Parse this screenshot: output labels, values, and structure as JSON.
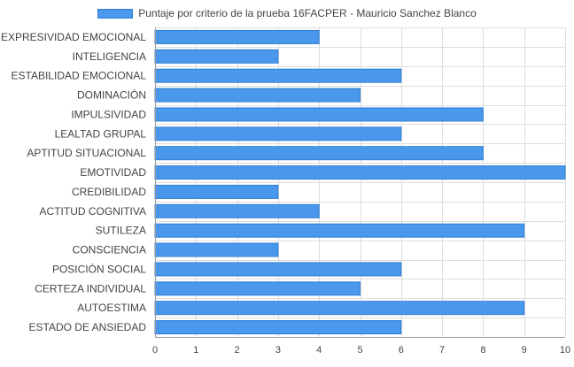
{
  "chart_data": {
    "type": "bar",
    "orientation": "horizontal",
    "categories": [
      "EXPRESIVIDAD EMOCIONAL",
      "INTELIGENCIA",
      "ESTABILIDAD EMOCIONAL",
      "DOMINACIÓN",
      "IMPULSIVIDAD",
      "LEALTAD GRUPAL",
      "APTITUD SITUACIONAL",
      "EMOTIVIDAD",
      "CREDIBILIDAD",
      "ACTITUD COGNITIVA",
      "SUTILEZA",
      "CONSCIENCIA",
      "POSICIÓN SOCIAL",
      "CERTEZA INDIVIDUAL",
      "AUTOESTIMA",
      "ESTADO DE ANSIEDAD"
    ],
    "series": [
      {
        "name": "Puntaje por criterio de la prueba 16FACPER - Mauricio Sanchez Blanco",
        "values": [
          4,
          3,
          6,
          5,
          8,
          6,
          8,
          10,
          3,
          4,
          9,
          3,
          6,
          5,
          9,
          6
        ]
      }
    ],
    "xlim": [
      0,
      10
    ],
    "xticks": [
      "0",
      "1",
      "2",
      "3",
      "4",
      "5",
      "6",
      "7",
      "8",
      "9",
      "10"
    ],
    "grid": true,
    "legend_position": "top",
    "colors": {
      "bar_fill": "#4a98ec",
      "bar_stroke": "#2f7fd6",
      "grid": "#dddddd",
      "axis": "#999999",
      "text": "#444444"
    }
  }
}
